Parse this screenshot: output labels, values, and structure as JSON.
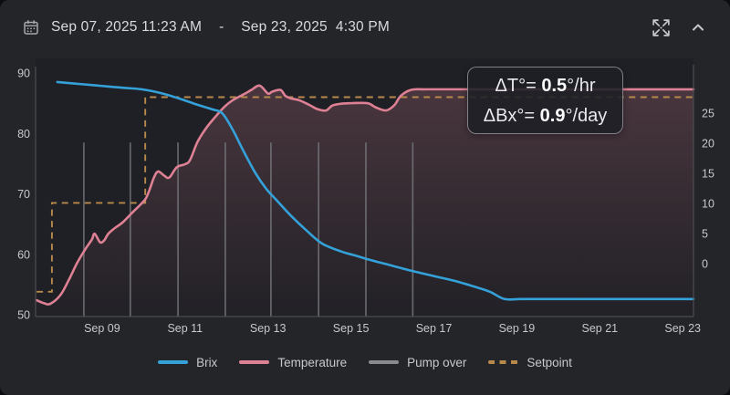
{
  "header": {
    "date_start": "Sep 07, 2025 11:23 AM",
    "separator": "-",
    "date_end": "Sep 23, 2025  4:30 PM"
  },
  "annotation": {
    "line1_prefix": "ΔT°= ",
    "line1_value": "0.5",
    "line1_suffix": "°/hr",
    "line2_prefix": "ΔBx°= ",
    "line2_value": "0.9",
    "line2_suffix": "°/day"
  },
  "legend": [
    {
      "label": "Brix",
      "color": "#35a1d9",
      "style": "solid"
    },
    {
      "label": "Temperature",
      "color": "#de8194",
      "style": "solid"
    },
    {
      "label": "Pump over",
      "color": "#8a8b8f",
      "style": "solid"
    },
    {
      "label": "Setpoint",
      "color": "#b7894a",
      "style": "dashed"
    }
  ],
  "colors": {
    "card_bg": "#242529",
    "plot_bg": "#1f2025",
    "axis_line": "#4c4d53",
    "tick_text": "#c7c8cc",
    "brix": "#35a1d9",
    "temperature": "#de8194",
    "pump_over": "#77787d",
    "setpoint": "#b7894a",
    "area_fill_top": "rgba(224,131,151,0.22)",
    "area_fill_bottom": "rgba(224,131,151,0.01)"
  },
  "chart_data": {
    "type": "line",
    "x_axis": {
      "unit": "september_day_decimal",
      "domain_days": [
        7.4,
        23.3
      ],
      "tick_days": [
        9,
        11,
        13,
        15,
        17,
        19,
        21,
        23
      ],
      "tick_labels": [
        "Sep 09",
        "Sep 11",
        "Sep 13",
        "Sep 15",
        "Sep 17",
        "Sep 19",
        "Sep 21",
        "Sep 23"
      ]
    },
    "y_left": {
      "min": 50,
      "max": 90,
      "ticks": [
        90,
        80,
        70,
        60,
        50
      ]
    },
    "y_right": {
      "ticks": [
        25,
        20,
        15,
        10,
        5,
        0
      ]
    },
    "grid": false,
    "legend_position": "bottom",
    "series": [
      {
        "name": "Brix",
        "axis": "left",
        "points": [
          [
            7.92,
            88.5
          ],
          [
            8.5,
            88.15
          ],
          [
            9.0,
            87.85
          ],
          [
            9.5,
            87.55
          ],
          [
            9.95,
            87.3
          ],
          [
            10.4,
            86.7
          ],
          [
            10.85,
            85.8
          ],
          [
            11.25,
            84.85
          ],
          [
            11.65,
            84.0
          ],
          [
            11.9,
            83.3
          ],
          [
            12.15,
            80.6
          ],
          [
            12.4,
            77.2
          ],
          [
            12.7,
            73.4
          ],
          [
            12.95,
            70.9
          ],
          [
            13.2,
            69.0
          ],
          [
            13.55,
            66.4
          ],
          [
            13.95,
            63.8
          ],
          [
            14.3,
            61.8
          ],
          [
            14.75,
            60.5
          ],
          [
            15.15,
            59.7
          ],
          [
            15.5,
            59.0
          ],
          [
            16.0,
            58.1
          ],
          [
            16.5,
            57.2
          ],
          [
            17.0,
            56.4
          ],
          [
            17.5,
            55.6
          ],
          [
            17.95,
            54.7
          ],
          [
            18.35,
            53.8
          ],
          [
            18.7,
            52.6
          ],
          [
            19.1,
            52.6
          ],
          [
            20.0,
            52.6
          ],
          [
            21.0,
            52.6
          ],
          [
            22.0,
            52.6
          ],
          [
            23.26,
            52.6
          ]
        ]
      },
      {
        "name": "Temperature",
        "axis": "left",
        "area_fill": true,
        "points": [
          [
            7.42,
            52.4
          ],
          [
            7.6,
            51.9
          ],
          [
            7.75,
            51.8
          ],
          [
            8.0,
            53.3
          ],
          [
            8.2,
            55.8
          ],
          [
            8.4,
            58.6
          ],
          [
            8.6,
            60.9
          ],
          [
            8.75,
            62.4
          ],
          [
            8.82,
            63.4
          ],
          [
            8.95,
            62.0
          ],
          [
            9.05,
            62.3
          ],
          [
            9.15,
            63.4
          ],
          [
            9.3,
            64.3
          ],
          [
            9.5,
            65.3
          ],
          [
            9.7,
            66.7
          ],
          [
            9.95,
            68.4
          ],
          [
            10.06,
            69.3
          ],
          [
            10.15,
            70.8
          ],
          [
            10.25,
            72.7
          ],
          [
            10.35,
            73.7
          ],
          [
            10.5,
            73.0
          ],
          [
            10.62,
            72.7
          ],
          [
            10.8,
            74.4
          ],
          [
            11.0,
            74.9
          ],
          [
            11.12,
            75.6
          ],
          [
            11.3,
            78.6
          ],
          [
            11.5,
            80.8
          ],
          [
            11.7,
            82.5
          ],
          [
            11.95,
            84.4
          ],
          [
            12.15,
            85.5
          ],
          [
            12.45,
            86.6
          ],
          [
            12.6,
            87.2
          ],
          [
            12.8,
            87.9
          ],
          [
            13.0,
            86.6
          ],
          [
            13.1,
            86.9
          ],
          [
            13.3,
            87.2
          ],
          [
            13.42,
            86.2
          ],
          [
            13.55,
            85.8
          ],
          [
            13.75,
            85.5
          ],
          [
            14.0,
            84.7
          ],
          [
            14.2,
            84.0
          ],
          [
            14.4,
            83.8
          ],
          [
            14.55,
            84.6
          ],
          [
            14.75,
            84.9
          ],
          [
            15.0,
            85.0
          ],
          [
            15.4,
            85.0
          ],
          [
            15.6,
            84.3
          ],
          [
            15.85,
            83.8
          ],
          [
            16.05,
            84.7
          ],
          [
            16.2,
            86.2
          ],
          [
            16.45,
            87.2
          ],
          [
            16.8,
            87.3
          ],
          [
            18.0,
            87.3
          ],
          [
            20.0,
            87.3
          ],
          [
            23.26,
            87.3
          ]
        ]
      },
      {
        "name": "Setpoint",
        "axis": "left",
        "dashed": true,
        "step_points": [
          [
            7.42,
            53.8
          ],
          [
            7.79,
            68.5
          ],
          [
            10.04,
            86.0
          ]
        ],
        "end_day": 23.26
      },
      {
        "name": "Pump over",
        "axis": "left",
        "event_days": [
          8.56,
          9.68,
          10.83,
          11.97,
          13.07,
          14.22,
          15.36,
          16.49
        ],
        "value_span": [
          50,
          78.5
        ]
      }
    ]
  }
}
